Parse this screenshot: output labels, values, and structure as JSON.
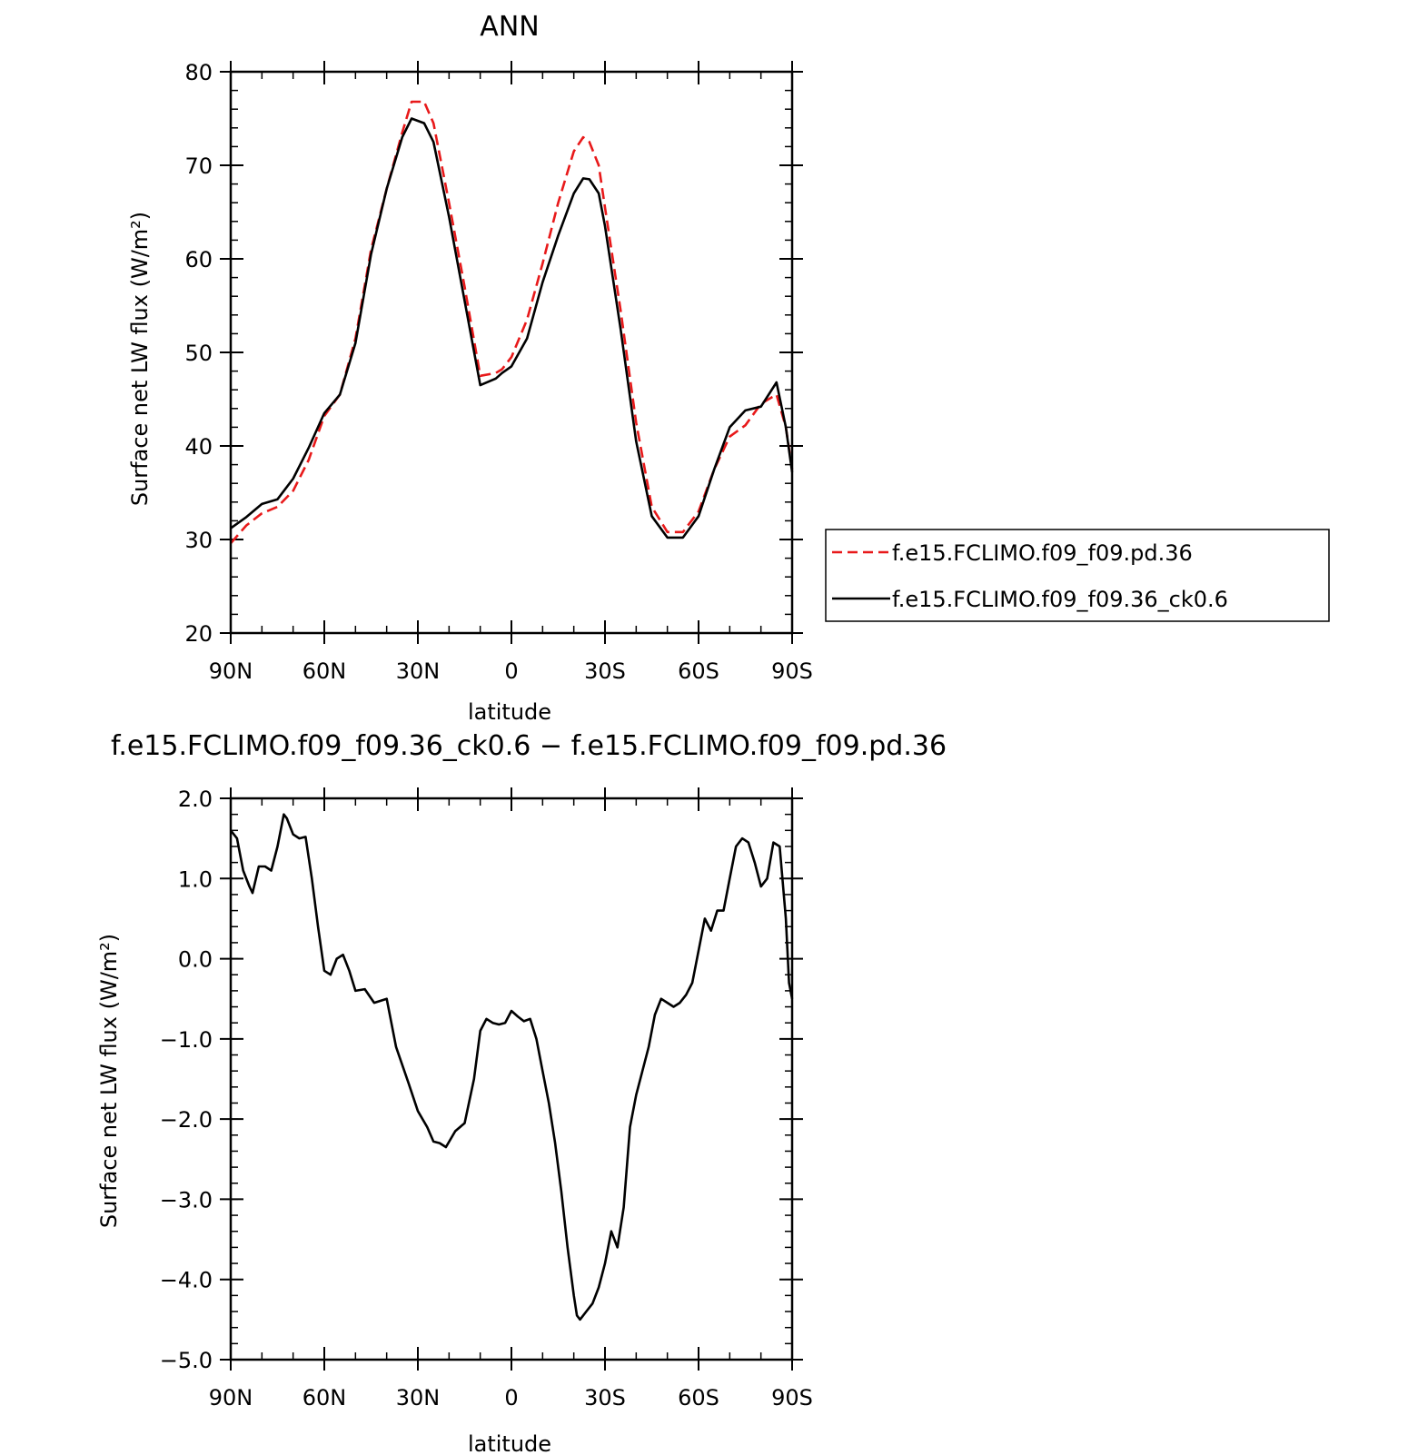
{
  "chart_data": [
    {
      "type": "line",
      "title": "ANN",
      "xlabel": "latitude",
      "ylabel": "Surface net LW flux (W/m²)",
      "xlim": [
        90,
        -90
      ],
      "ylim": [
        20,
        80
      ],
      "x_ticks": [
        {
          "value": 90,
          "label": "90N"
        },
        {
          "value": 60,
          "label": "60N"
        },
        {
          "value": 30,
          "label": "30N"
        },
        {
          "value": 0,
          "label": "0"
        },
        {
          "value": -30,
          "label": "30S"
        },
        {
          "value": -60,
          "label": "60S"
        },
        {
          "value": -90,
          "label": "90S"
        }
      ],
      "y_ticks": [
        {
          "value": 20,
          "label": "20"
        },
        {
          "value": 30,
          "label": "30"
        },
        {
          "value": 40,
          "label": "40"
        },
        {
          "value": 50,
          "label": "50"
        },
        {
          "value": 60,
          "label": "60"
        },
        {
          "value": 70,
          "label": "70"
        },
        {
          "value": 80,
          "label": "80"
        }
      ],
      "legend": {
        "position": "right"
      },
      "x": [
        90,
        85,
        80,
        75,
        70,
        65,
        60,
        55,
        50,
        45,
        40,
        35,
        32,
        28,
        25,
        20,
        15,
        10,
        5,
        3,
        0,
        -5,
        -10,
        -15,
        -20,
        -23,
        -25,
        -28,
        -30,
        -35,
        -40,
        -45,
        -50,
        -55,
        -60,
        -65,
        -70,
        -75,
        -80,
        -85,
        -88,
        -90
      ],
      "series": [
        {
          "name": "f.e15.FCLIMO.f09_f09.pd.36",
          "color": "#e8191a",
          "dash": "dashed",
          "values": [
            29.6,
            31.5,
            32.8,
            33.5,
            35.2,
            38.5,
            43.2,
            45.5,
            51.5,
            61.0,
            67.5,
            73.5,
            76.8,
            76.8,
            74.5,
            66.0,
            57.0,
            47.5,
            47.8,
            48.2,
            49.5,
            53.5,
            59.5,
            66.0,
            71.5,
            73.0,
            72.5,
            70.0,
            65.5,
            54.5,
            42.5,
            33.5,
            30.8,
            30.8,
            33.0,
            37.5,
            41.0,
            42.2,
            44.5,
            45.5,
            42.0,
            37.5
          ]
        },
        {
          "name": "f.e15.FCLIMO.f09_f09.36_ck0.6",
          "color": "#000000",
          "dash": "solid",
          "values": [
            31.2,
            32.4,
            33.8,
            34.3,
            36.5,
            39.8,
            43.5,
            45.5,
            51.0,
            60.5,
            67.5,
            73.0,
            75.0,
            74.5,
            72.5,
            64.5,
            55.5,
            46.5,
            47.2,
            47.8,
            48.5,
            51.5,
            57.5,
            62.5,
            67.0,
            68.6,
            68.5,
            67.0,
            63.5,
            52.5,
            40.5,
            32.5,
            30.2,
            30.2,
            32.5,
            37.5,
            42.0,
            43.8,
            44.2,
            46.8,
            42.0,
            37.2
          ]
        }
      ]
    },
    {
      "type": "line",
      "title": "f.e15.FCLIMO.f09_f09.36_ck0.6 − f.e15.FCLIMO.f09_f09.pd.36",
      "xlabel": "latitude",
      "ylabel": "Surface net LW flux (W/m²)",
      "xlim": [
        90,
        -90
      ],
      "ylim": [
        -5.0,
        2.0
      ],
      "x_ticks": [
        {
          "value": 90,
          "label": "90N"
        },
        {
          "value": 60,
          "label": "60N"
        },
        {
          "value": 30,
          "label": "30N"
        },
        {
          "value": 0,
          "label": "0"
        },
        {
          "value": -30,
          "label": "30S"
        },
        {
          "value": -60,
          "label": "60S"
        },
        {
          "value": -90,
          "label": "90S"
        }
      ],
      "y_ticks": [
        {
          "value": 2.0,
          "label": "2.0"
        },
        {
          "value": 1.0,
          "label": "1.0"
        },
        {
          "value": 0.0,
          "label": "0.0"
        },
        {
          "value": -1.0,
          "label": "−1.0"
        },
        {
          "value": -2.0,
          "label": "−2.0"
        },
        {
          "value": -3.0,
          "label": "−3.0"
        },
        {
          "value": -4.0,
          "label": "−4.0"
        },
        {
          "value": -5.0,
          "label": "−5.0"
        }
      ],
      "x": [
        90,
        88,
        86,
        84,
        83,
        81,
        79,
        77,
        75,
        73,
        72,
        70,
        68,
        66,
        64,
        62,
        60,
        58,
        56,
        54,
        52,
        50,
        47,
        44,
        40,
        37,
        33,
        30,
        27,
        25,
        23,
        21,
        18,
        15,
        12,
        10,
        8,
        6,
        4,
        2,
        0,
        -2,
        -4,
        -6,
        -8,
        -10,
        -12,
        -14,
        -16,
        -18,
        -20,
        -21,
        -22,
        -24,
        -26,
        -28,
        -30,
        -32,
        -34,
        -36,
        -38,
        -40,
        -42,
        -44,
        -46,
        -48,
        -50,
        -52,
        -54,
        -56,
        -58,
        -60,
        -62,
        -64,
        -66,
        -68,
        -70,
        -72,
        -74,
        -76,
        -78,
        -80,
        -82,
        -84,
        -86,
        -88,
        -89,
        -90
      ],
      "series": [
        {
          "name": "",
          "color": "#000000",
          "dash": "solid",
          "values": [
            1.6,
            1.5,
            1.1,
            0.9,
            0.82,
            1.15,
            1.15,
            1.1,
            1.4,
            1.8,
            1.75,
            1.55,
            1.5,
            1.52,
            1.0,
            0.4,
            -0.15,
            -0.2,
            0.0,
            0.05,
            -0.15,
            -0.4,
            -0.38,
            -0.55,
            -0.5,
            -1.1,
            -1.55,
            -1.9,
            -2.1,
            -2.28,
            -2.3,
            -2.35,
            -2.15,
            -2.05,
            -1.5,
            -0.9,
            -0.75,
            -0.8,
            -0.82,
            -0.8,
            -0.65,
            -0.72,
            -0.78,
            -0.75,
            -1.0,
            -1.4,
            -1.8,
            -2.3,
            -2.9,
            -3.6,
            -4.2,
            -4.45,
            -4.5,
            -4.4,
            -4.3,
            -4.1,
            -3.8,
            -3.4,
            -3.6,
            -3.1,
            -2.1,
            -1.7,
            -1.4,
            -1.1,
            -0.7,
            -0.5,
            -0.55,
            -0.6,
            -0.55,
            -0.45,
            -0.3,
            0.1,
            0.5,
            0.35,
            0.6,
            0.6,
            1.0,
            1.4,
            1.5,
            1.45,
            1.2,
            0.9,
            1.0,
            1.45,
            1.4,
            0.5,
            -0.3,
            -0.5
          ]
        }
      ]
    }
  ]
}
